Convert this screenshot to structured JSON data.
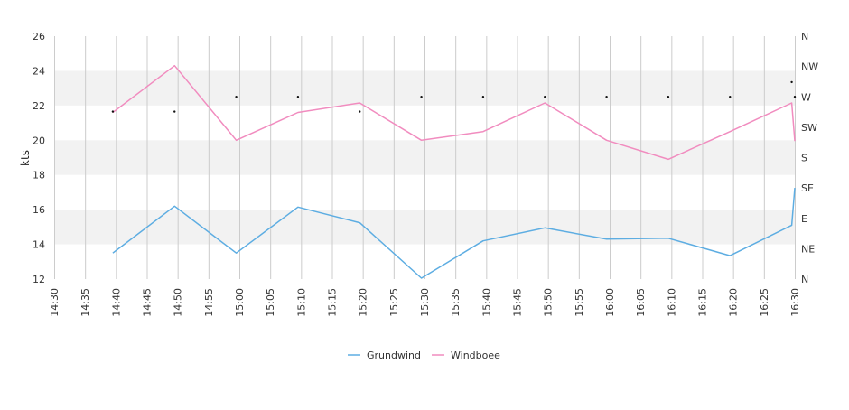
{
  "chart_data": {
    "type": "line",
    "title": "",
    "xlabel": "",
    "ylabel": "kts",
    "ylim": [
      12,
      26
    ],
    "yticks": [
      "12",
      "14",
      "16",
      "18",
      "20",
      "22",
      "24",
      "26"
    ],
    "y2ticks": [
      "N",
      "NE",
      "E",
      "SE",
      "S",
      "SW",
      "W",
      "NW",
      "N"
    ],
    "xlim": [
      "14:30",
      "16:30"
    ],
    "xticks": [
      "14:30",
      "14:35",
      "14:40",
      "14:45",
      "14:50",
      "14:55",
      "15:00",
      "15:05",
      "15:10",
      "15:15",
      "15:20",
      "15:25",
      "15:30",
      "15:35",
      "15:40",
      "15:45",
      "15:50",
      "15:55",
      "16:00",
      "16:05",
      "16:10",
      "16:15",
      "16:20",
      "16:25",
      "16:30"
    ],
    "grid": true,
    "legend": "bottom",
    "series": [
      {
        "name": "Grundwind",
        "color": "#5dade2",
        "points": [
          [
            "14:39:30",
            13.5
          ],
          [
            "14:49:30",
            16.2
          ],
          [
            "14:59:30",
            13.5
          ],
          [
            "15:09:30",
            16.15
          ],
          [
            "15:19:30",
            15.25
          ],
          [
            "15:29:30",
            12.05
          ],
          [
            "15:39:30",
            14.2
          ],
          [
            "15:49:30",
            14.95
          ],
          [
            "15:59:30",
            14.3
          ],
          [
            "16:09:30",
            14.35
          ],
          [
            "16:19:30",
            13.35
          ],
          [
            "16:29:30",
            15.1
          ],
          [
            "16:30:00",
            17.25
          ]
        ]
      },
      {
        "name": "Windboee",
        "color": "#f18cbf",
        "points": [
          [
            "14:39:30",
            21.6
          ],
          [
            "14:49:30",
            24.3
          ],
          [
            "14:59:30",
            20.0
          ],
          [
            "15:09:30",
            21.6
          ],
          [
            "15:19:30",
            22.15
          ],
          [
            "15:29:30",
            20.0
          ],
          [
            "15:39:30",
            20.5
          ],
          [
            "15:49:30",
            22.15
          ],
          [
            "15:59:30",
            20.0
          ],
          [
            "16:09:30",
            18.9
          ],
          [
            "16:19:30",
            20.5
          ],
          [
            "16:29:30",
            22.15
          ],
          [
            "16:30:00",
            19.95
          ]
        ]
      }
    ],
    "direction": {
      "points": [
        [
          "14:39:30",
          21.65
        ],
        [
          "14:49:30",
          21.65
        ],
        [
          "14:59:30",
          22.5
        ],
        [
          "15:09:30",
          22.5
        ],
        [
          "15:19:30",
          21.65
        ],
        [
          "15:29:30",
          22.5
        ],
        [
          "15:39:30",
          22.5
        ],
        [
          "15:49:30",
          22.5
        ],
        [
          "15:59:30",
          22.5
        ],
        [
          "16:09:30",
          22.5
        ],
        [
          "16:19:30",
          22.5
        ],
        [
          "16:29:30",
          23.35
        ],
        [
          "16:30:00",
          22.5
        ]
      ]
    },
    "band_color": "#f2f2f2",
    "grid_color": "#cccccc"
  }
}
